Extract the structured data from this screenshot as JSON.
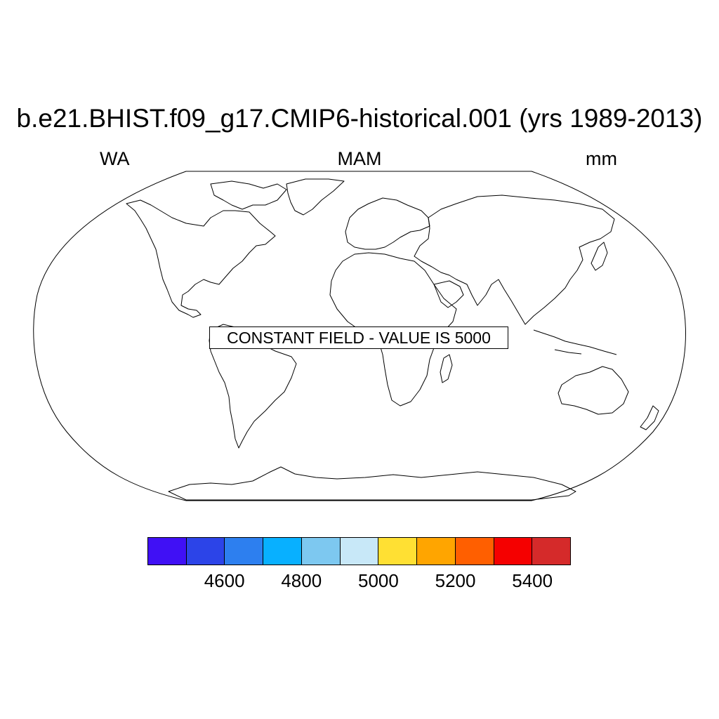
{
  "title": "b.e21.BHIST.f09_g17.CMIP6-historical.001 (yrs 1989-2013)",
  "left_label": "WA",
  "center_label": "MAM",
  "right_label": "mm",
  "map": {
    "projection": "Robinson",
    "land_outline_color": "#000000",
    "message": "CONSTANT FIELD - VALUE IS 5000"
  },
  "colorbar": {
    "colors": [
      "#4010f5",
      "#2c44e8",
      "#2d7fef",
      "#08b0ff",
      "#7dc8f0",
      "#c8e8f8",
      "#ffe033",
      "#ffa500",
      "#ff5f00",
      "#f50000",
      "#d52a2a"
    ],
    "tick_labels": [
      "4600",
      "4800",
      "5000",
      "5200",
      "5400"
    ],
    "tick_after_segment": [
      2,
      4,
      6,
      8,
      10
    ]
  }
}
